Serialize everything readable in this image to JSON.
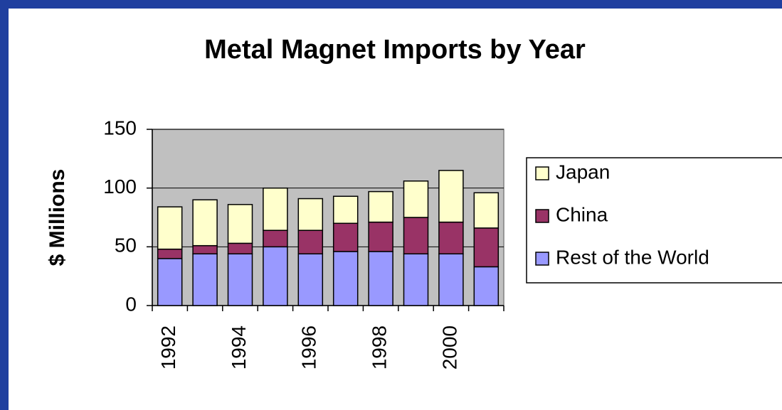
{
  "chart_data": {
    "type": "stacked_bar",
    "title": "Metal Magnet Imports by Year",
    "y_label": "$ Millions",
    "categories": [
      "1992",
      null,
      "1994",
      null,
      "1996",
      null,
      "1998",
      null,
      "2000",
      null
    ],
    "series": [
      {
        "name": "Rest of the World",
        "color": "#9999ff",
        "values": [
          40,
          44,
          44,
          50,
          44,
          46,
          46,
          44,
          44,
          33
        ]
      },
      {
        "name": "China",
        "color": "#993366",
        "values": [
          8,
          7,
          9,
          14,
          20,
          24,
          25,
          31,
          27,
          33
        ]
      },
      {
        "name": "Japan",
        "color": "#ffffcc",
        "values": [
          36,
          39,
          33,
          36,
          27,
          23,
          26,
          31,
          44,
          30
        ]
      }
    ],
    "ylim": [
      0,
      150
    ],
    "yticks": [
      0,
      50,
      100,
      150
    ],
    "grid": true,
    "legend": "right"
  }
}
